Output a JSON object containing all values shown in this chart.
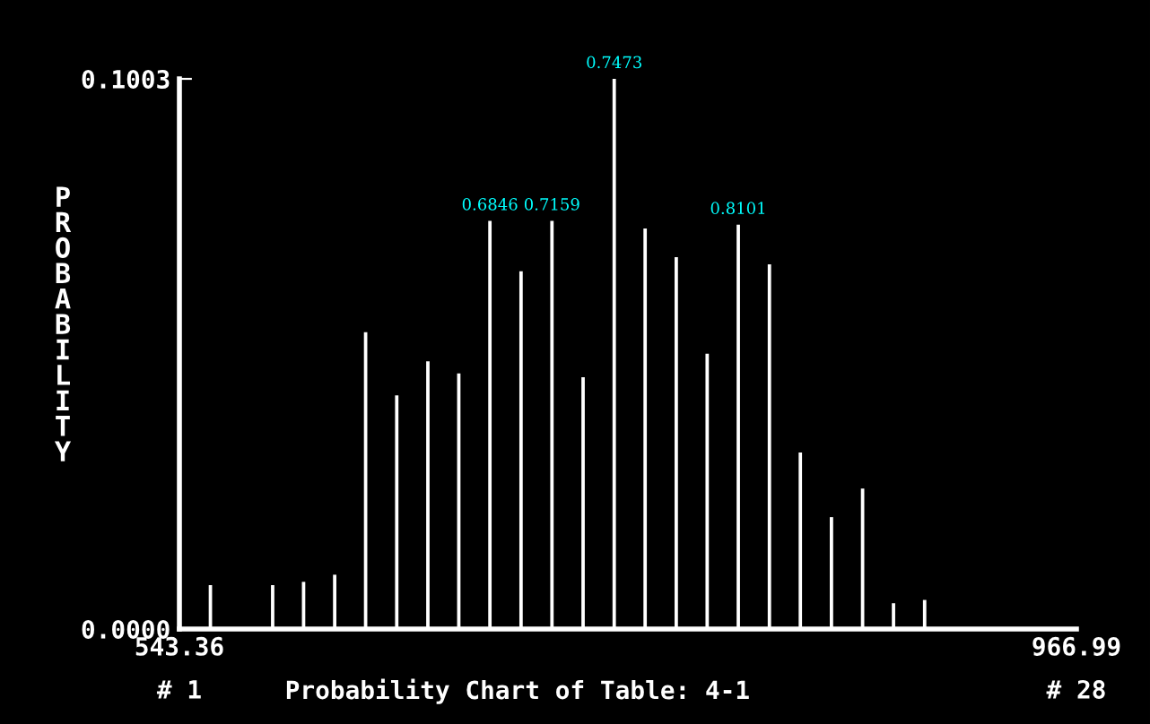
{
  "chart_data": {
    "type": "bar",
    "title": "Probability Chart of Table: 4-1",
    "ylabel": "PROBABILITY",
    "x": [
      558.0,
      587.4,
      602.0,
      616.7,
      631.3,
      646.0,
      660.7,
      675.3,
      690.0,
      704.7,
      719.3,
      734.0,
      748.7,
      763.3,
      778.0,
      792.6,
      807.3,
      822.0,
      836.6,
      851.3,
      866.0,
      880.6,
      895.3
    ],
    "values": [
      0.008,
      0.008,
      0.0086,
      0.0099,
      0.0541,
      0.0426,
      0.0488,
      0.0466,
      0.0744,
      0.0652,
      0.0744,
      0.0459,
      0.1003,
      0.073,
      0.0678,
      0.0502,
      0.0737,
      0.0665,
      0.0322,
      0.0204,
      0.0256,
      0.0047,
      0.0053
    ],
    "color": "#ffffff",
    "xlim": [
      543.36,
      966.99
    ],
    "xticks": [
      543.36,
      966.99
    ],
    "ylim": [
      0,
      0.1003
    ],
    "yticks": [
      {
        "value": 0,
        "label": "0.0000"
      },
      {
        "value": 0.1003,
        "label": "0.1003"
      }
    ],
    "annotations": [
      "# 1",
      "# 28",
      {
        "text": "0.6846",
        "x": 690.0,
        "y": 0.0744
      },
      {
        "text": "0.7159",
        "x": 719.3,
        "y": 0.0744
      },
      {
        "text": "0.7473",
        "x": 748.7,
        "y": 0.1003
      },
      {
        "text": "0.8101",
        "x": 807.3,
        "y": 0.0737
      }
    ],
    "grid": false,
    "legend": false
  }
}
